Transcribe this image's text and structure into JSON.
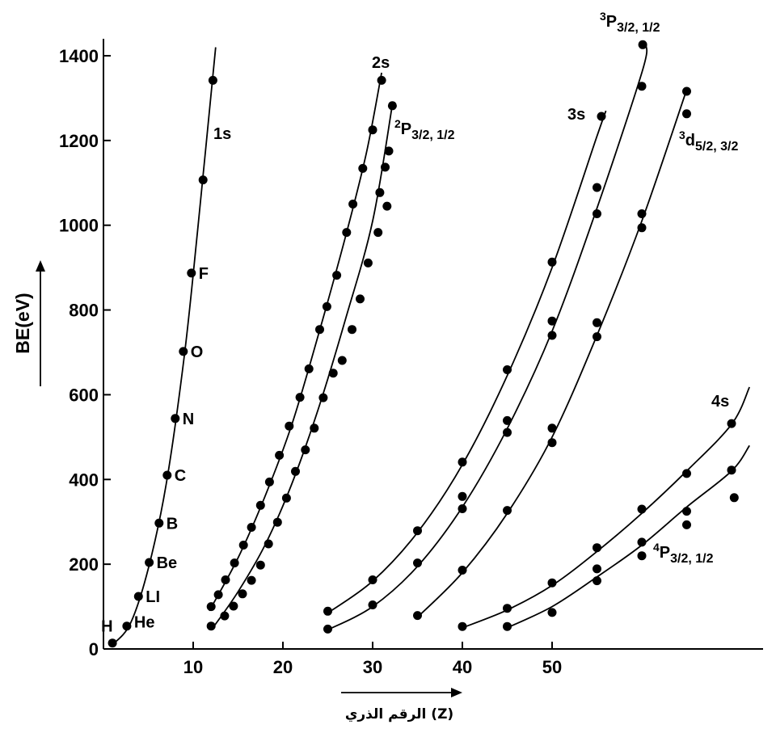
{
  "chart_data": {
    "type": "scatter",
    "ylabel": "BE(eV)",
    "xlabel": "(Z) الرقم الذري",
    "xlim": [
      0,
      73
    ],
    "ylim": [
      0,
      1400
    ],
    "x_ticks": [
      10,
      20,
      30,
      40,
      50
    ],
    "y_ticks": [
      0,
      200,
      400,
      600,
      800,
      1000,
      1200,
      1400
    ],
    "grid": false,
    "series": [
      {
        "name": "1s",
        "points": [
          [
            1,
            14
          ],
          [
            2.6,
            54
          ],
          [
            3.9,
            124
          ],
          [
            5.1,
            204
          ],
          [
            6.2,
            297
          ],
          [
            7.1,
            410
          ],
          [
            8,
            544
          ],
          [
            8.9,
            702
          ],
          [
            9.8,
            887
          ],
          [
            11.1,
            1107
          ],
          [
            12.2,
            1342
          ]
        ],
        "point_labels": [
          "H",
          "He",
          "LI",
          "Be",
          "B",
          "C",
          "N",
          "O",
          "F",
          "",
          ""
        ],
        "curve": [
          [
            1,
            10
          ],
          [
            3,
            60
          ],
          [
            5,
            190
          ],
          [
            7,
            390
          ],
          [
            9,
            690
          ],
          [
            10.5,
            990
          ],
          [
            12.5,
            1420
          ]
        ]
      },
      {
        "name": "2s",
        "points": [
          [
            12,
            100
          ],
          [
            12.8,
            128
          ],
          [
            13.6,
            163
          ],
          [
            14.6,
            203
          ],
          [
            15.6,
            245
          ],
          [
            16.5,
            287
          ],
          [
            17.5,
            339
          ],
          [
            18.5,
            394
          ],
          [
            19.6,
            457
          ],
          [
            20.7,
            526
          ],
          [
            21.9,
            594
          ],
          [
            22.9,
            661
          ],
          [
            24.1,
            754
          ],
          [
            24.9,
            808
          ],
          [
            26,
            882
          ],
          [
            27.1,
            983
          ],
          [
            27.8,
            1050
          ],
          [
            28.9,
            1134
          ],
          [
            30,
            1225
          ],
          [
            31,
            1342
          ]
        ],
        "curve": [
          [
            11.8,
            90
          ],
          [
            15,
            215
          ],
          [
            18,
            360
          ],
          [
            21,
            530
          ],
          [
            24,
            745
          ],
          [
            27,
            975
          ],
          [
            29.3,
            1170
          ],
          [
            31,
            1360
          ]
        ]
      },
      {
        "name": "2P3/2, 1/2",
        "points": [
          [
            12,
            54
          ],
          [
            13.5,
            78
          ],
          [
            14.5,
            101
          ],
          [
            15.5,
            130
          ],
          [
            16.5,
            162
          ],
          [
            17.5,
            198
          ],
          [
            18.4,
            248
          ],
          [
            19.4,
            299
          ],
          [
            20.4,
            356
          ],
          [
            21.4,
            419
          ],
          [
            22.5,
            470
          ],
          [
            23.5,
            521
          ],
          [
            24.5,
            593
          ],
          [
            25.6,
            651
          ],
          [
            26.6,
            681
          ],
          [
            27.7,
            754
          ],
          [
            28.6,
            826
          ],
          [
            29.5,
            911
          ],
          [
            30.6,
            983
          ],
          [
            31.6,
            1045
          ],
          [
            30.8,
            1077
          ],
          [
            31.4,
            1137
          ],
          [
            31.8,
            1175
          ],
          [
            32.2,
            1282
          ]
        ],
        "curve": [
          [
            12.2,
            50
          ],
          [
            15,
            135
          ],
          [
            18,
            245
          ],
          [
            21,
            390
          ],
          [
            24,
            570
          ],
          [
            27,
            780
          ],
          [
            30,
            1010
          ],
          [
            32.2,
            1285
          ]
        ]
      },
      {
        "name": "3s",
        "points": [
          [
            25,
            89
          ],
          [
            30,
            163
          ],
          [
            35,
            279
          ],
          [
            40,
            441
          ],
          [
            45,
            659
          ],
          [
            50,
            913
          ],
          [
            55,
            1089
          ],
          [
            55.5,
            1257
          ]
        ],
        "curve": [
          [
            25,
            85
          ],
          [
            30,
            160
          ],
          [
            35,
            275
          ],
          [
            40,
            435
          ],
          [
            45,
            645
          ],
          [
            50,
            900
          ],
          [
            55,
            1210
          ],
          [
            56,
            1270
          ]
        ]
      },
      {
        "name": "3P3/2, 1/2",
        "points": [
          [
            25,
            47
          ],
          [
            30,
            104
          ],
          [
            35,
            203
          ],
          [
            40,
            331
          ],
          [
            40,
            360
          ],
          [
            45,
            511
          ],
          [
            45,
            539
          ],
          [
            50,
            740
          ],
          [
            50,
            774
          ],
          [
            55,
            1027
          ],
          [
            60,
            1328
          ],
          [
            60.1,
            1426
          ]
        ],
        "curve": [
          [
            25,
            45
          ],
          [
            30,
            100
          ],
          [
            35,
            195
          ],
          [
            40,
            335
          ],
          [
            45,
            520
          ],
          [
            50,
            750
          ],
          [
            55,
            1040
          ],
          [
            60,
            1360
          ],
          [
            60.5,
            1425
          ]
        ]
      },
      {
        "name": "3d5/2, 3/2",
        "points": [
          [
            35,
            79
          ],
          [
            40,
            186
          ],
          [
            45,
            327
          ],
          [
            50,
            487
          ],
          [
            50,
            521
          ],
          [
            55,
            737
          ],
          [
            55,
            770
          ],
          [
            60,
            994
          ],
          [
            60,
            1027
          ],
          [
            65,
            1263
          ],
          [
            65,
            1316
          ]
        ],
        "curve": [
          [
            35,
            75
          ],
          [
            40,
            180
          ],
          [
            45,
            320
          ],
          [
            50,
            500
          ],
          [
            55,
            740
          ],
          [
            60,
            1010
          ],
          [
            65,
            1320
          ]
        ]
      },
      {
        "name": "4s",
        "points": [
          [
            40,
            53
          ],
          [
            45,
            96
          ],
          [
            50,
            156
          ],
          [
            55,
            239
          ],
          [
            60,
            330
          ],
          [
            65,
            414
          ],
          [
            70,
            532
          ]
        ],
        "curve": [
          [
            40,
            50
          ],
          [
            45,
            92
          ],
          [
            50,
            150
          ],
          [
            55,
            230
          ],
          [
            60,
            320
          ],
          [
            65,
            420
          ],
          [
            70,
            530
          ],
          [
            72,
            618
          ]
        ]
      },
      {
        "name": "4P3/2, 1/2",
        "points": [
          [
            45,
            53
          ],
          [
            50,
            86
          ],
          [
            55,
            161
          ],
          [
            55,
            189
          ],
          [
            60,
            220
          ],
          [
            60,
            252
          ],
          [
            65,
            293
          ],
          [
            65,
            325
          ],
          [
            70,
            422
          ],
          [
            70.3,
            357
          ]
        ],
        "curve": [
          [
            45,
            50
          ],
          [
            50,
            100
          ],
          [
            55,
            170
          ],
          [
            60,
            245
          ],
          [
            65,
            335
          ],
          [
            70,
            420
          ],
          [
            72,
            480
          ]
        ]
      }
    ]
  }
}
